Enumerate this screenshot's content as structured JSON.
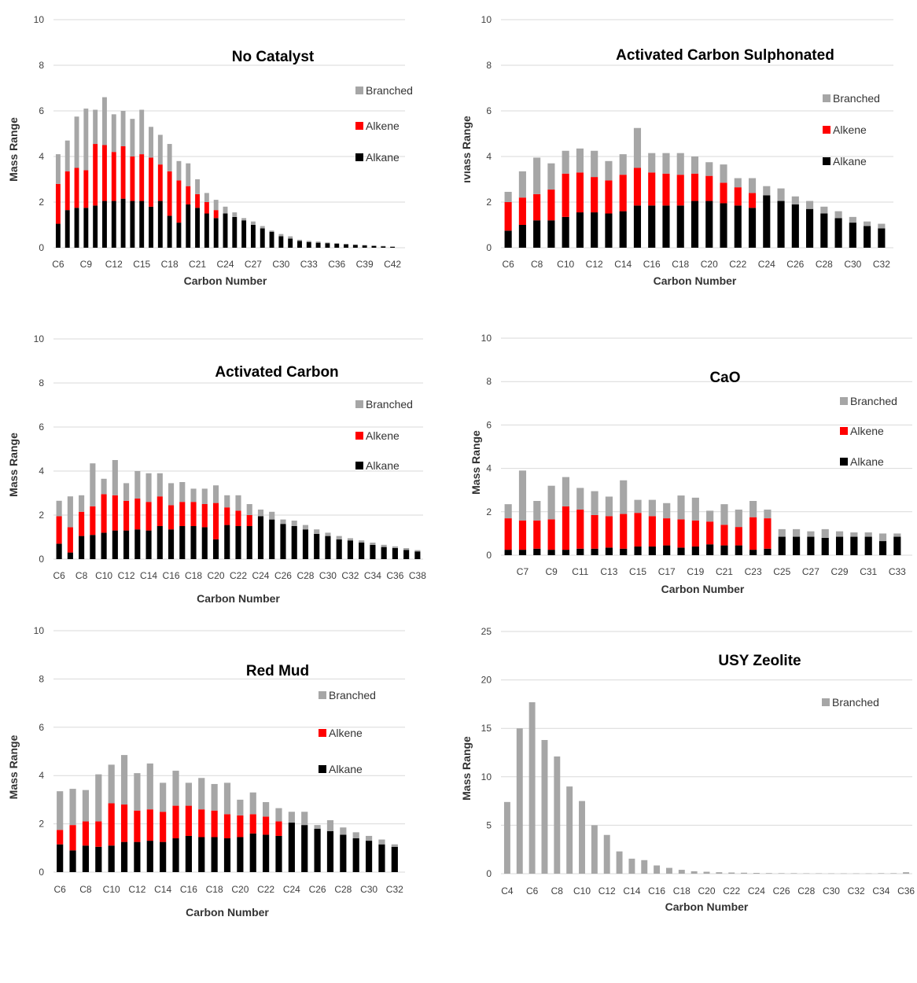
{
  "colors": {
    "Branched": "#a6a6a6",
    "Alkene": "#ff0000",
    "Alkane": "#000000"
  },
  "chart_data": [
    {
      "type": "bar",
      "stacked": true,
      "title": "No Catalyst",
      "xlabel": "Carbon Number",
      "ylabel": "Mass Range",
      "ylim": [
        0,
        10
      ],
      "yticks": [
        0,
        2,
        4,
        6,
        8,
        10
      ],
      "categories": [
        "C6",
        "C7",
        "C8",
        "C9",
        "C10",
        "C11",
        "C12",
        "C13",
        "C14",
        "C15",
        "C16",
        "C17",
        "C18",
        "C19",
        "C20",
        "C21",
        "C22",
        "C23",
        "C24",
        "C25",
        "C26",
        "C27",
        "C28",
        "C29",
        "C30",
        "C31",
        "C32",
        "C33",
        "C34",
        "C35",
        "C36",
        "C37",
        "C38",
        "C39",
        "C40",
        "C41",
        "C42"
      ],
      "tick_labels": [
        "C6",
        "C9",
        "C12",
        "C15",
        "C18",
        "C21",
        "C24",
        "C27",
        "C30",
        "C33",
        "C36",
        "C39",
        "C42"
      ],
      "legend": [
        "Branched",
        "Alkene",
        "Alkane"
      ],
      "legend_position": "right",
      "series": [
        {
          "name": "Alkane",
          "values": [
            1.05,
            1.65,
            1.75,
            1.75,
            1.85,
            2.05,
            2.05,
            2.15,
            2.05,
            2.05,
            1.8,
            2.05,
            1.4,
            1.1,
            1.9,
            1.75,
            1.5,
            1.3,
            1.5,
            1.35,
            1.2,
            1.0,
            0.85,
            0.7,
            0.5,
            0.4,
            0.3,
            0.25,
            0.22,
            0.2,
            0.18,
            0.15,
            0.12,
            0.1,
            0.08,
            0.06,
            0.04
          ]
        },
        {
          "name": "Alkene",
          "values": [
            1.75,
            1.7,
            1.75,
            1.65,
            2.7,
            2.45,
            2.15,
            2.3,
            1.95,
            2.05,
            2.15,
            1.6,
            1.95,
            1.85,
            0.8,
            0.6,
            0.5,
            0.35,
            0,
            0,
            0,
            0,
            0,
            0,
            0,
            0,
            0,
            0,
            0,
            0,
            0,
            0,
            0,
            0,
            0,
            0,
            0
          ]
        },
        {
          "name": "Branched",
          "values": [
            1.3,
            1.35,
            2.25,
            2.7,
            1.5,
            2.1,
            1.65,
            1.55,
            1.65,
            1.95,
            1.35,
            1.3,
            1.2,
            0.85,
            1.0,
            0.65,
            0.4,
            0.45,
            0.3,
            0.2,
            0.1,
            0.15,
            0.1,
            0.05,
            0.1,
            0.1,
            0.05,
            0.05,
            0.05,
            0.03,
            0.02,
            0.02,
            0.02,
            0.02,
            0.02,
            0.02,
            0.02
          ]
        }
      ]
    },
    {
      "type": "bar",
      "stacked": true,
      "title": "Activated Carbon Sulphonated",
      "xlabel": "Carbon Number",
      "ylabel": "ıvıass Range",
      "ylim": [
        0,
        10
      ],
      "yticks": [
        0,
        2,
        4,
        6,
        8,
        10
      ],
      "categories": [
        "C6",
        "C7",
        "C8",
        "C9",
        "C10",
        "C11",
        "C12",
        "C13",
        "C14",
        "C15",
        "C16",
        "C17",
        "C18",
        "C19",
        "C20",
        "C21",
        "C22",
        "C23",
        "C24",
        "C25",
        "C26",
        "C27",
        "C28",
        "C29",
        "C30",
        "C31",
        "C32"
      ],
      "tick_labels": [
        "C6",
        "C8",
        "C10",
        "C12",
        "C14",
        "C16",
        "C18",
        "C20",
        "C22",
        "C24",
        "C26",
        "C28",
        "C30",
        "C32"
      ],
      "legend": [
        "Branched",
        "Alkene",
        "Alkane"
      ],
      "legend_position": "right",
      "series": [
        {
          "name": "Alkane",
          "values": [
            0.75,
            1.0,
            1.2,
            1.2,
            1.35,
            1.55,
            1.55,
            1.5,
            1.6,
            1.85,
            1.85,
            1.85,
            1.85,
            2.05,
            2.05,
            1.95,
            1.85,
            1.75,
            2.3,
            2.05,
            1.9,
            1.7,
            1.5,
            1.3,
            1.1,
            0.95,
            0.85
          ]
        },
        {
          "name": "Alkene",
          "values": [
            1.25,
            1.2,
            1.15,
            1.35,
            1.9,
            1.75,
            1.55,
            1.45,
            1.6,
            1.65,
            1.45,
            1.4,
            1.35,
            1.2,
            1.1,
            0.9,
            0.8,
            0.65,
            0,
            0,
            0,
            0,
            0,
            0,
            0,
            0,
            0
          ]
        },
        {
          "name": "Branched",
          "values": [
            0.45,
            1.15,
            1.6,
            1.15,
            1.0,
            1.05,
            1.15,
            0.85,
            0.9,
            1.75,
            0.85,
            0.9,
            0.95,
            0.75,
            0.6,
            0.8,
            0.4,
            0.65,
            0.4,
            0.55,
            0.35,
            0.35,
            0.3,
            0.3,
            0.25,
            0.2,
            0.2
          ]
        }
      ]
    },
    {
      "type": "bar",
      "stacked": true,
      "title": "Activated Carbon",
      "xlabel": "Carbon Number",
      "ylabel": "Mass Range",
      "ylim": [
        0,
        10
      ],
      "yticks": [
        0,
        2,
        4,
        6,
        8,
        10
      ],
      "categories": [
        "C6",
        "C7",
        "C8",
        "C9",
        "C10",
        "C11",
        "C12",
        "C13",
        "C14",
        "C15",
        "C16",
        "C17",
        "C18",
        "C19",
        "C20",
        "C21",
        "C22",
        "C23",
        "C24",
        "C25",
        "C26",
        "C27",
        "C28",
        "C29",
        "C30",
        "C31",
        "C32",
        "C33",
        "C34",
        "C35",
        "C36",
        "C37",
        "C38"
      ],
      "tick_labels": [
        "C6",
        "C8",
        "C10",
        "C12",
        "C14",
        "C16",
        "C18",
        "C20",
        "C22",
        "C24",
        "C26",
        "C28",
        "C30",
        "C32",
        "C34",
        "C36",
        "C38"
      ],
      "legend": [
        "Branched",
        "Alkene",
        "Alkane"
      ],
      "legend_position": "right",
      "series": [
        {
          "name": "Alkane",
          "values": [
            0.7,
            0.3,
            1.05,
            1.1,
            1.2,
            1.3,
            1.3,
            1.35,
            1.3,
            1.5,
            1.35,
            1.5,
            1.5,
            1.45,
            0.9,
            1.55,
            1.5,
            1.5,
            1.95,
            1.8,
            1.6,
            1.5,
            1.35,
            1.15,
            1.05,
            0.9,
            0.85,
            0.75,
            0.65,
            0.55,
            0.5,
            0.42,
            0.35
          ]
        },
        {
          "name": "Alkene",
          "values": [
            1.25,
            1.15,
            1.1,
            1.3,
            1.75,
            1.6,
            1.35,
            1.4,
            1.3,
            1.35,
            1.1,
            1.1,
            1.1,
            1.05,
            1.65,
            0.8,
            0.7,
            0.5,
            0,
            0,
            0,
            0,
            0,
            0,
            0,
            0,
            0,
            0,
            0,
            0,
            0,
            0,
            0
          ]
        },
        {
          "name": "Branched",
          "values": [
            0.7,
            1.4,
            0.75,
            1.95,
            0.7,
            1.6,
            0.8,
            1.25,
            1.3,
            1.05,
            1.0,
            0.9,
            0.6,
            0.7,
            0.8,
            0.55,
            0.7,
            0.5,
            0.3,
            0.35,
            0.2,
            0.25,
            0.2,
            0.2,
            0.15,
            0.15,
            0.1,
            0.1,
            0.1,
            0.1,
            0.08,
            0.08,
            0.06
          ]
        }
      ]
    },
    {
      "type": "bar",
      "stacked": true,
      "title": "CaO",
      "xlabel": "Carbon Number",
      "ylabel": "Mass Range",
      "ylim": [
        0,
        10
      ],
      "yticks": [
        0,
        2,
        4,
        6,
        8,
        10
      ],
      "categories": [
        "C6",
        "C7",
        "C8",
        "C9",
        "C10",
        "C11",
        "C12",
        "C13",
        "C14",
        "C15",
        "C16",
        "C17",
        "C18",
        "C19",
        "C20",
        "C21",
        "C22",
        "C23",
        "C24",
        "C25",
        "C26",
        "C27",
        "C28",
        "C29",
        "C30",
        "C31",
        "C32",
        "C33"
      ],
      "tick_labels": [
        "C7",
        "C9",
        "C11",
        "C13",
        "C15",
        "C17",
        "C19",
        "C21",
        "C23",
        "C25",
        "C27",
        "C29",
        "C31",
        "C33"
      ],
      "legend": [
        "Branched",
        "Alkene",
        "Alkane"
      ],
      "legend_position": "right",
      "series": [
        {
          "name": "Alkane",
          "values": [
            0.25,
            0.25,
            0.3,
            0.25,
            0.25,
            0.3,
            0.3,
            0.35,
            0.3,
            0.4,
            0.4,
            0.45,
            0.35,
            0.4,
            0.5,
            0.45,
            0.45,
            0.25,
            0.3,
            0.85,
            0.85,
            0.85,
            0.8,
            0.85,
            0.85,
            0.85,
            0.65,
            0.85
          ]
        },
        {
          "name": "Alkene",
          "values": [
            1.45,
            1.35,
            1.3,
            1.4,
            2.0,
            1.8,
            1.55,
            1.45,
            1.6,
            1.55,
            1.4,
            1.25,
            1.3,
            1.2,
            1.05,
            0.95,
            0.85,
            1.5,
            1.4,
            0,
            0,
            0,
            0,
            0,
            0,
            0,
            0,
            0
          ]
        },
        {
          "name": "Branched",
          "values": [
            0.65,
            2.3,
            0.9,
            1.55,
            1.35,
            1.0,
            1.1,
            0.9,
            1.55,
            0.6,
            0.75,
            0.7,
            1.1,
            1.05,
            0.5,
            0.95,
            0.8,
            0.75,
            0.4,
            0.35,
            0.35,
            0.25,
            0.4,
            0.25,
            0.2,
            0.2,
            0.35,
            0.15
          ]
        }
      ]
    },
    {
      "type": "bar",
      "stacked": true,
      "title": "Red Mud",
      "xlabel": "Carbon Number",
      "ylabel": "Mass Range",
      "ylim": [
        0,
        10
      ],
      "yticks": [
        0,
        2,
        4,
        6,
        8,
        10
      ],
      "categories": [
        "C6",
        "C7",
        "C8",
        "C9",
        "C10",
        "C11",
        "C12",
        "C13",
        "C14",
        "C15",
        "C16",
        "C17",
        "C18",
        "C19",
        "C20",
        "C21",
        "C22",
        "C23",
        "C24",
        "C25",
        "C26",
        "C27",
        "C28",
        "C29",
        "C30",
        "C31",
        "C32"
      ],
      "tick_labels": [
        "C6",
        "C8",
        "C10",
        "C12",
        "C14",
        "C16",
        "C18",
        "C20",
        "C22",
        "C24",
        "C26",
        "C28",
        "C30",
        "C32"
      ],
      "legend": [
        "Branched",
        "Alkene",
        "Alkane"
      ],
      "legend_position": "right",
      "series": [
        {
          "name": "Alkane",
          "values": [
            1.15,
            0.9,
            1.1,
            1.05,
            1.1,
            1.25,
            1.25,
            1.3,
            1.25,
            1.4,
            1.5,
            1.45,
            1.45,
            1.4,
            1.45,
            1.6,
            1.55,
            1.5,
            2.05,
            1.95,
            1.8,
            1.7,
            1.55,
            1.4,
            1.3,
            1.15,
            1.05
          ]
        },
        {
          "name": "Alkene",
          "values": [
            0.6,
            1.05,
            1.0,
            1.05,
            1.75,
            1.55,
            1.3,
            1.3,
            1.25,
            1.35,
            1.25,
            1.15,
            1.1,
            1.0,
            0.9,
            0.8,
            0.75,
            0.6,
            0,
            0,
            0,
            0,
            0,
            0,
            0,
            0,
            0
          ]
        },
        {
          "name": "Branched",
          "values": [
            1.6,
            1.5,
            1.3,
            1.95,
            1.6,
            2.05,
            1.55,
            1.9,
            1.2,
            1.45,
            0.95,
            1.3,
            1.1,
            1.3,
            0.65,
            0.9,
            0.6,
            0.55,
            0.45,
            0.55,
            0.15,
            0.45,
            0.3,
            0.25,
            0.2,
            0.2,
            0.1
          ]
        }
      ]
    },
    {
      "type": "bar",
      "stacked": false,
      "title": "USY Zeolite",
      "xlabel": "Carbon Number",
      "ylabel": "Mass Range",
      "ylim": [
        0,
        25
      ],
      "yticks": [
        0,
        5,
        10,
        15,
        20,
        25
      ],
      "categories": [
        "C4",
        "C5",
        "C6",
        "C7",
        "C8",
        "C9",
        "C10",
        "C11",
        "C12",
        "C13",
        "C14",
        "C15",
        "C16",
        "C17",
        "C18",
        "C19",
        "C20",
        "C21",
        "C22",
        "C23",
        "C24",
        "C25",
        "C26",
        "C27",
        "C28",
        "C29",
        "C30",
        "C31",
        "C32",
        "C33",
        "C34",
        "C35",
        "C36"
      ],
      "tick_labels": [
        "C4",
        "C6",
        "C8",
        "C10",
        "C12",
        "C14",
        "C16",
        "C18",
        "C20",
        "C22",
        "C24",
        "C26",
        "C28",
        "C30",
        "C32",
        "C34",
        "C36"
      ],
      "legend": [
        "Branched"
      ],
      "legend_position": "right",
      "series": [
        {
          "name": "Branched",
          "values": [
            7.4,
            15.0,
            17.7,
            13.8,
            12.1,
            9.0,
            7.5,
            5.0,
            4.0,
            2.3,
            1.55,
            1.4,
            0.85,
            0.6,
            0.4,
            0.25,
            0.2,
            0.15,
            0.12,
            0.1,
            0.08,
            0.06,
            0.05,
            0.05,
            0.04,
            0.04,
            0.03,
            0.03,
            0.03,
            0.03,
            0.05,
            0.05,
            0.15
          ]
        }
      ]
    }
  ]
}
